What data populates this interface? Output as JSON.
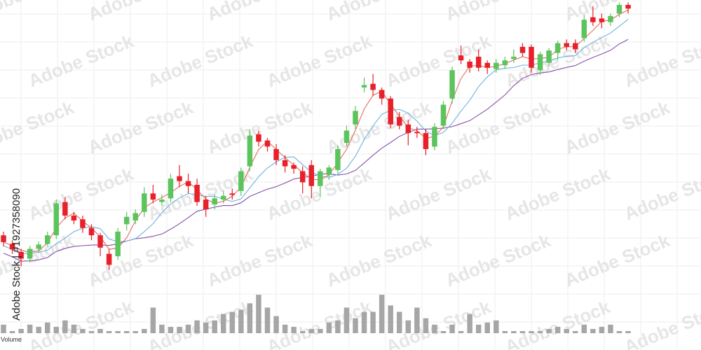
{
  "watermark_text": "Adobe Stock",
  "side_text": "Adobe Stock | #192735809​0",
  "chart_data": {
    "type": "candlestick",
    "volume_label": "Volume",
    "grid": true,
    "colors": {
      "up": "#5cc45c",
      "down": "#e8202a",
      "ma_short": "#6cb4de",
      "ma_mid": "#e86a5c",
      "ma_long": "#8a4fa8",
      "volume": "#a6a6a6",
      "grid": "#eeeeee"
    },
    "y_range": [
      0,
      500
    ],
    "candles": [
      {
        "o": 118,
        "c": 107,
        "h": 124,
        "l": 100
      },
      {
        "o": 104,
        "c": 95,
        "h": 110,
        "l": 88
      },
      {
        "o": 91,
        "c": 80,
        "h": 96,
        "l": 68
      },
      {
        "o": 80,
        "c": 96,
        "h": 101,
        "l": 74
      },
      {
        "o": 96,
        "c": 103,
        "h": 108,
        "l": 90
      },
      {
        "o": 104,
        "c": 118,
        "h": 124,
        "l": 100
      },
      {
        "o": 118,
        "c": 170,
        "h": 176,
        "l": 112
      },
      {
        "o": 172,
        "c": 150,
        "h": 180,
        "l": 144
      },
      {
        "o": 150,
        "c": 142,
        "h": 156,
        "l": 136
      },
      {
        "o": 144,
        "c": 130,
        "h": 150,
        "l": 122
      },
      {
        "o": 130,
        "c": 118,
        "h": 136,
        "l": 110
      },
      {
        "o": 118,
        "c": 98,
        "h": 122,
        "l": 84
      },
      {
        "o": 88,
        "c": 70,
        "h": 96,
        "l": 62
      },
      {
        "o": 84,
        "c": 124,
        "h": 130,
        "l": 78
      },
      {
        "o": 136,
        "c": 148,
        "h": 156,
        "l": 126
      },
      {
        "o": 142,
        "c": 154,
        "h": 160,
        "l": 136
      },
      {
        "o": 156,
        "c": 186,
        "h": 196,
        "l": 148
      },
      {
        "o": 186,
        "c": 176,
        "h": 200,
        "l": 170
      },
      {
        "o": 172,
        "c": 176,
        "h": 184,
        "l": 166
      },
      {
        "o": 178,
        "c": 210,
        "h": 218,
        "l": 172
      },
      {
        "o": 214,
        "c": 206,
        "h": 232,
        "l": 196
      },
      {
        "o": 206,
        "c": 198,
        "h": 218,
        "l": 186
      },
      {
        "o": 200,
        "c": 172,
        "h": 210,
        "l": 166
      },
      {
        "o": 176,
        "c": 160,
        "h": 182,
        "l": 148
      },
      {
        "o": 168,
        "c": 178,
        "h": 184,
        "l": 160
      },
      {
        "o": 176,
        "c": 182,
        "h": 190,
        "l": 170
      },
      {
        "o": 186,
        "c": 184,
        "h": 194,
        "l": 176
      },
      {
        "o": 190,
        "c": 222,
        "h": 228,
        "l": 182
      },
      {
        "o": 230,
        "c": 280,
        "h": 290,
        "l": 222
      },
      {
        "o": 282,
        "c": 270,
        "h": 288,
        "l": 262
      },
      {
        "o": 272,
        "c": 262,
        "h": 276,
        "l": 254
      },
      {
        "o": 258,
        "c": 240,
        "h": 266,
        "l": 232
      },
      {
        "o": 240,
        "c": 230,
        "h": 248,
        "l": 220
      },
      {
        "o": 232,
        "c": 226,
        "h": 236,
        "l": 218
      },
      {
        "o": 222,
        "c": 204,
        "h": 230,
        "l": 186
      },
      {
        "o": 232,
        "c": 198,
        "h": 240,
        "l": 178
      },
      {
        "o": 198,
        "c": 222,
        "h": 226,
        "l": 180
      },
      {
        "o": 216,
        "c": 228,
        "h": 232,
        "l": 208
      },
      {
        "o": 224,
        "c": 258,
        "h": 264,
        "l": 218
      },
      {
        "o": 268,
        "c": 288,
        "h": 296,
        "l": 262
      },
      {
        "o": 298,
        "c": 320,
        "h": 328,
        "l": 290
      },
      {
        "o": 358,
        "c": 362,
        "h": 374,
        "l": 350
      },
      {
        "o": 364,
        "c": 354,
        "h": 380,
        "l": 344
      },
      {
        "o": 354,
        "c": 340,
        "h": 358,
        "l": 330
      },
      {
        "o": 340,
        "c": 298,
        "h": 344,
        "l": 292
      },
      {
        "o": 310,
        "c": 296,
        "h": 318,
        "l": 290
      },
      {
        "o": 298,
        "c": 284,
        "h": 306,
        "l": 264
      },
      {
        "o": 286,
        "c": 284,
        "h": 294,
        "l": 276
      },
      {
        "o": 284,
        "c": 258,
        "h": 290,
        "l": 248
      },
      {
        "o": 262,
        "c": 294,
        "h": 300,
        "l": 256
      },
      {
        "o": 296,
        "c": 330,
        "h": 336,
        "l": 290
      },
      {
        "o": 340,
        "c": 386,
        "h": 392,
        "l": 332
      },
      {
        "o": 410,
        "c": 402,
        "h": 426,
        "l": 396
      },
      {
        "o": 400,
        "c": 390,
        "h": 404,
        "l": 382
      },
      {
        "o": 408,
        "c": 390,
        "h": 420,
        "l": 384
      },
      {
        "o": 398,
        "c": 390,
        "h": 402,
        "l": 380
      },
      {
        "o": 388,
        "c": 398,
        "h": 404,
        "l": 382
      },
      {
        "o": 394,
        "c": 402,
        "h": 408,
        "l": 388
      },
      {
        "o": 404,
        "c": 408,
        "h": 420,
        "l": 398
      },
      {
        "o": 424,
        "c": 414,
        "h": 430,
        "l": 408
      },
      {
        "o": 424,
        "c": 390,
        "h": 428,
        "l": 382
      },
      {
        "o": 386,
        "c": 412,
        "h": 416,
        "l": 378
      },
      {
        "o": 398,
        "c": 418,
        "h": 422,
        "l": 392
      },
      {
        "o": 414,
        "c": 430,
        "h": 434,
        "l": 402
      },
      {
        "o": 430,
        "c": 424,
        "h": 436,
        "l": 418
      },
      {
        "o": 430,
        "c": 420,
        "h": 436,
        "l": 414
      },
      {
        "o": 438,
        "c": 468,
        "h": 476,
        "l": 432
      },
      {
        "o": 472,
        "c": 464,
        "h": 490,
        "l": 458
      },
      {
        "o": 470,
        "c": 464,
        "h": 478,
        "l": 454
      },
      {
        "o": 464,
        "c": 474,
        "h": 478,
        "l": 458
      },
      {
        "o": 478,
        "c": 492,
        "h": 496,
        "l": 472
      },
      {
        "o": 492,
        "c": 486,
        "h": 496,
        "l": 478
      }
    ],
    "volume": [
      4,
      1,
      2,
      4,
      3,
      5,
      3,
      6,
      4,
      2,
      1,
      2,
      1,
      1,
      1,
      1,
      2,
      12,
      4,
      3,
      3,
      4,
      6,
      5,
      6,
      9,
      10,
      11,
      14,
      18,
      12,
      8,
      4,
      3,
      1,
      2,
      2,
      5,
      6,
      12,
      7,
      10,
      10,
      18,
      13,
      10,
      6,
      12,
      7,
      4,
      1,
      4,
      1,
      9,
      4,
      5,
      6,
      1,
      1,
      1,
      1,
      1,
      2,
      3,
      2,
      1,
      4,
      2,
      3,
      4,
      1,
      1
    ]
  }
}
